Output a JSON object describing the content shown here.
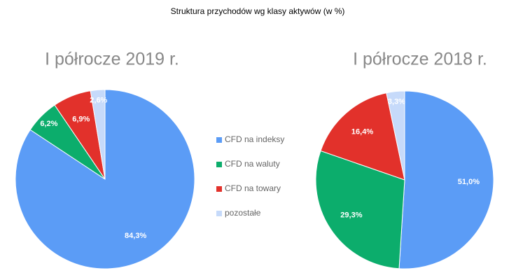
{
  "chart_data": [
    {
      "type": "pie",
      "title": "Struktura przychodów wg klasy aktywów (w %)",
      "subtitle": "I półrocze 2019 r.",
      "categories": [
        "CFD na indeksy",
        "CFD na waluty",
        "CFD na towary",
        "pozostałe"
      ],
      "colors": [
        "#5b9cf6",
        "#0cad6c",
        "#e2312b",
        "#c6dafa"
      ],
      "values": [
        84.3,
        6.2,
        6.9,
        2.6
      ],
      "value_labels": [
        "84,3%",
        "6,2%",
        "6,9%",
        "2,6%"
      ]
    },
    {
      "type": "pie",
      "subtitle": "I półrocze 2018 r.",
      "values": [
        51.0,
        29.3,
        16.4,
        3.3
      ],
      "value_labels": [
        "51,0%",
        "29,3%",
        "16,4%",
        "3,3%"
      ]
    }
  ]
}
